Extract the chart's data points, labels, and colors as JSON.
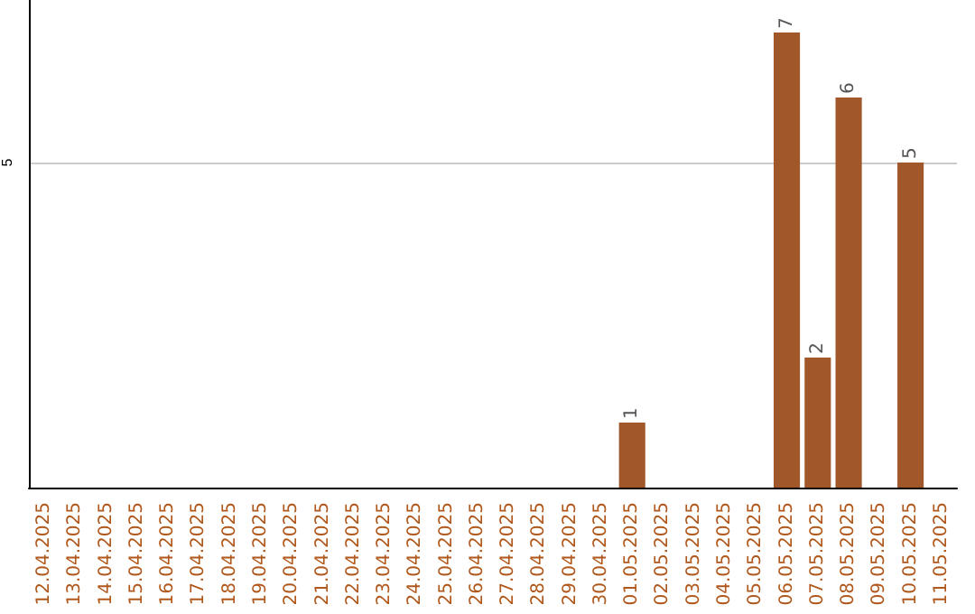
{
  "chart_data": {
    "type": "bar",
    "categories": [
      "12.04.2025",
      "13.04.2025",
      "14.04.2025",
      "15.04.2025",
      "16.04.2025",
      "17.04.2025",
      "18.04.2025",
      "19.04.2025",
      "20.04.2025",
      "21.04.2025",
      "22.04.2025",
      "23.04.2025",
      "24.04.2025",
      "25.04.2025",
      "26.04.2025",
      "27.04.2025",
      "28.04.2025",
      "29.04.2025",
      "30.04.2025",
      "01.05.2025",
      "02.05.2025",
      "03.05.2025",
      "04.05.2025",
      "05.05.2025",
      "06.05.2025",
      "07.05.2025",
      "08.05.2025",
      "09.05.2025",
      "10.05.2025",
      "11.05.2025"
    ],
    "values": [
      null,
      null,
      null,
      null,
      null,
      null,
      null,
      null,
      null,
      null,
      null,
      null,
      null,
      null,
      null,
      null,
      null,
      null,
      null,
      1,
      null,
      null,
      null,
      null,
      7,
      2,
      6,
      null,
      5,
      null
    ],
    "data_labels": true,
    "color": "#a0582a",
    "ylim": [
      0,
      7.5
    ],
    "yticks": [
      5
    ],
    "grid": "y"
  }
}
